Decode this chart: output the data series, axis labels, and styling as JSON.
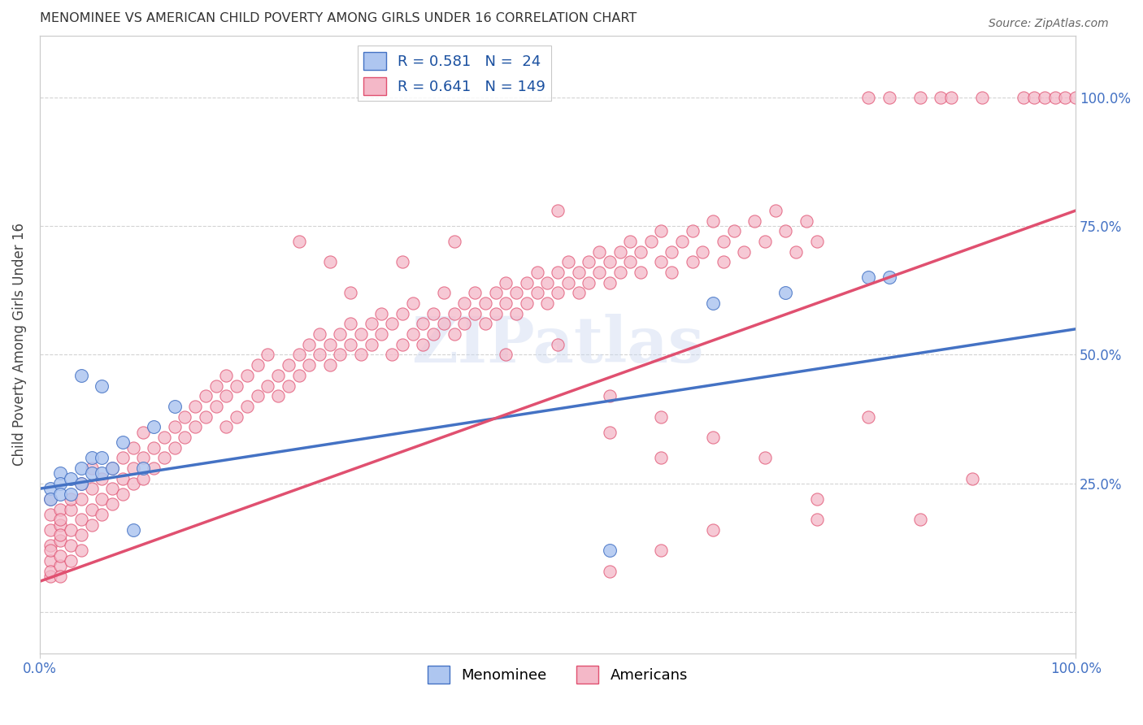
{
  "title": "MENOMINEE VS AMERICAN CHILD POVERTY AMONG GIRLS UNDER 16 CORRELATION CHART",
  "source": "Source: ZipAtlas.com",
  "ylabel": "Child Poverty Among Girls Under 16",
  "watermark": "ZIPatlas",
  "xlim": [
    0.0,
    1.0
  ],
  "ylim": [
    -0.08,
    1.12
  ],
  "menominee_scatter": [
    [
      0.01,
      0.24
    ],
    [
      0.01,
      0.22
    ],
    [
      0.02,
      0.27
    ],
    [
      0.02,
      0.25
    ],
    [
      0.02,
      0.23
    ],
    [
      0.03,
      0.26
    ],
    [
      0.03,
      0.23
    ],
    [
      0.04,
      0.28
    ],
    [
      0.04,
      0.25
    ],
    [
      0.05,
      0.3
    ],
    [
      0.05,
      0.27
    ],
    [
      0.06,
      0.3
    ],
    [
      0.06,
      0.27
    ],
    [
      0.07,
      0.28
    ],
    [
      0.08,
      0.33
    ],
    [
      0.09,
      0.16
    ],
    [
      0.1,
      0.28
    ],
    [
      0.11,
      0.36
    ],
    [
      0.13,
      0.4
    ],
    [
      0.04,
      0.46
    ],
    [
      0.06,
      0.44
    ],
    [
      0.65,
      0.6
    ],
    [
      0.72,
      0.62
    ],
    [
      0.8,
      0.65
    ],
    [
      0.82,
      0.65
    ],
    [
      0.55,
      0.12
    ]
  ],
  "americans_scatter": [
    [
      0.01,
      0.13
    ],
    [
      0.01,
      0.16
    ],
    [
      0.01,
      0.19
    ],
    [
      0.01,
      0.22
    ],
    [
      0.01,
      0.1
    ],
    [
      0.01,
      0.07
    ],
    [
      0.01,
      0.08
    ],
    [
      0.01,
      0.12
    ],
    [
      0.02,
      0.14
    ],
    [
      0.02,
      0.17
    ],
    [
      0.02,
      0.2
    ],
    [
      0.02,
      0.09
    ],
    [
      0.02,
      0.11
    ],
    [
      0.02,
      0.15
    ],
    [
      0.02,
      0.18
    ],
    [
      0.02,
      0.07
    ],
    [
      0.03,
      0.16
    ],
    [
      0.03,
      0.13
    ],
    [
      0.03,
      0.1
    ],
    [
      0.03,
      0.2
    ],
    [
      0.03,
      0.22
    ],
    [
      0.04,
      0.18
    ],
    [
      0.04,
      0.15
    ],
    [
      0.04,
      0.22
    ],
    [
      0.04,
      0.12
    ],
    [
      0.04,
      0.25
    ],
    [
      0.05,
      0.2
    ],
    [
      0.05,
      0.24
    ],
    [
      0.05,
      0.17
    ],
    [
      0.05,
      0.28
    ],
    [
      0.06,
      0.22
    ],
    [
      0.06,
      0.26
    ],
    [
      0.06,
      0.19
    ],
    [
      0.07,
      0.24
    ],
    [
      0.07,
      0.28
    ],
    [
      0.07,
      0.21
    ],
    [
      0.08,
      0.26
    ],
    [
      0.08,
      0.3
    ],
    [
      0.08,
      0.23
    ],
    [
      0.09,
      0.28
    ],
    [
      0.09,
      0.32
    ],
    [
      0.09,
      0.25
    ],
    [
      0.1,
      0.3
    ],
    [
      0.1,
      0.26
    ],
    [
      0.1,
      0.35
    ],
    [
      0.11,
      0.32
    ],
    [
      0.11,
      0.28
    ],
    [
      0.12,
      0.34
    ],
    [
      0.12,
      0.3
    ],
    [
      0.13,
      0.36
    ],
    [
      0.13,
      0.32
    ],
    [
      0.14,
      0.38
    ],
    [
      0.14,
      0.34
    ],
    [
      0.15,
      0.4
    ],
    [
      0.15,
      0.36
    ],
    [
      0.16,
      0.38
    ],
    [
      0.16,
      0.42
    ],
    [
      0.17,
      0.4
    ],
    [
      0.17,
      0.44
    ],
    [
      0.18,
      0.36
    ],
    [
      0.18,
      0.42
    ],
    [
      0.18,
      0.46
    ],
    [
      0.19,
      0.38
    ],
    [
      0.19,
      0.44
    ],
    [
      0.2,
      0.4
    ],
    [
      0.2,
      0.46
    ],
    [
      0.21,
      0.42
    ],
    [
      0.21,
      0.48
    ],
    [
      0.22,
      0.44
    ],
    [
      0.22,
      0.5
    ],
    [
      0.23,
      0.46
    ],
    [
      0.23,
      0.42
    ],
    [
      0.24,
      0.48
    ],
    [
      0.24,
      0.44
    ],
    [
      0.25,
      0.5
    ],
    [
      0.25,
      0.46
    ],
    [
      0.26,
      0.52
    ],
    [
      0.26,
      0.48
    ],
    [
      0.27,
      0.5
    ],
    [
      0.27,
      0.54
    ],
    [
      0.28,
      0.52
    ],
    [
      0.28,
      0.48
    ],
    [
      0.29,
      0.54
    ],
    [
      0.29,
      0.5
    ],
    [
      0.3,
      0.56
    ],
    [
      0.3,
      0.52
    ],
    [
      0.31,
      0.54
    ],
    [
      0.31,
      0.5
    ],
    [
      0.32,
      0.56
    ],
    [
      0.32,
      0.52
    ],
    [
      0.33,
      0.58
    ],
    [
      0.33,
      0.54
    ],
    [
      0.34,
      0.5
    ],
    [
      0.34,
      0.56
    ],
    [
      0.35,
      0.52
    ],
    [
      0.35,
      0.58
    ],
    [
      0.36,
      0.54
    ],
    [
      0.36,
      0.6
    ],
    [
      0.37,
      0.56
    ],
    [
      0.37,
      0.52
    ],
    [
      0.38,
      0.58
    ],
    [
      0.38,
      0.54
    ],
    [
      0.39,
      0.56
    ],
    [
      0.39,
      0.62
    ],
    [
      0.4,
      0.58
    ],
    [
      0.4,
      0.54
    ],
    [
      0.41,
      0.6
    ],
    [
      0.41,
      0.56
    ],
    [
      0.42,
      0.62
    ],
    [
      0.42,
      0.58
    ],
    [
      0.43,
      0.6
    ],
    [
      0.43,
      0.56
    ],
    [
      0.44,
      0.62
    ],
    [
      0.44,
      0.58
    ],
    [
      0.45,
      0.64
    ],
    [
      0.45,
      0.6
    ],
    [
      0.46,
      0.62
    ],
    [
      0.46,
      0.58
    ],
    [
      0.47,
      0.64
    ],
    [
      0.47,
      0.6
    ],
    [
      0.48,
      0.66
    ],
    [
      0.48,
      0.62
    ],
    [
      0.49,
      0.64
    ],
    [
      0.49,
      0.6
    ],
    [
      0.5,
      0.66
    ],
    [
      0.5,
      0.62
    ],
    [
      0.51,
      0.64
    ],
    [
      0.51,
      0.68
    ],
    [
      0.52,
      0.66
    ],
    [
      0.52,
      0.62
    ],
    [
      0.53,
      0.68
    ],
    [
      0.53,
      0.64
    ],
    [
      0.54,
      0.7
    ],
    [
      0.54,
      0.66
    ],
    [
      0.55,
      0.68
    ],
    [
      0.55,
      0.64
    ],
    [
      0.56,
      0.7
    ],
    [
      0.56,
      0.66
    ],
    [
      0.57,
      0.68
    ],
    [
      0.57,
      0.72
    ],
    [
      0.58,
      0.7
    ],
    [
      0.58,
      0.66
    ],
    [
      0.59,
      0.72
    ],
    [
      0.6,
      0.68
    ],
    [
      0.6,
      0.74
    ],
    [
      0.61,
      0.7
    ],
    [
      0.61,
      0.66
    ],
    [
      0.62,
      0.72
    ],
    [
      0.63,
      0.68
    ],
    [
      0.63,
      0.74
    ],
    [
      0.64,
      0.7
    ],
    [
      0.65,
      0.76
    ],
    [
      0.66,
      0.72
    ],
    [
      0.66,
      0.68
    ],
    [
      0.67,
      0.74
    ],
    [
      0.68,
      0.7
    ],
    [
      0.69,
      0.76
    ],
    [
      0.7,
      0.72
    ],
    [
      0.71,
      0.78
    ],
    [
      0.72,
      0.74
    ],
    [
      0.73,
      0.7
    ],
    [
      0.74,
      0.76
    ],
    [
      0.75,
      0.72
    ],
    [
      0.8,
      1.0
    ],
    [
      0.82,
      1.0
    ],
    [
      0.85,
      1.0
    ],
    [
      0.87,
      1.0
    ],
    [
      0.88,
      1.0
    ],
    [
      0.91,
      1.0
    ],
    [
      0.95,
      1.0
    ],
    [
      0.96,
      1.0
    ],
    [
      0.97,
      1.0
    ],
    [
      0.98,
      1.0
    ],
    [
      0.99,
      1.0
    ],
    [
      1.0,
      1.0
    ],
    [
      0.35,
      0.68
    ],
    [
      0.4,
      0.72
    ],
    [
      0.5,
      0.52
    ],
    [
      0.55,
      0.42
    ],
    [
      0.6,
      0.38
    ],
    [
      0.65,
      0.34
    ],
    [
      0.7,
      0.3
    ],
    [
      0.75,
      0.22
    ],
    [
      0.55,
      0.08
    ],
    [
      0.6,
      0.12
    ],
    [
      0.65,
      0.16
    ],
    [
      0.8,
      0.38
    ],
    [
      0.9,
      0.26
    ],
    [
      0.5,
      0.78
    ],
    [
      0.45,
      0.5
    ],
    [
      0.25,
      0.72
    ],
    [
      0.28,
      0.68
    ],
    [
      0.3,
      0.62
    ],
    [
      0.55,
      0.35
    ],
    [
      0.6,
      0.3
    ],
    [
      0.75,
      0.18
    ],
    [
      0.85,
      0.18
    ]
  ],
  "menominee_line_color": "#4472c4",
  "americans_line_color": "#e05070",
  "menominee_scatter_color": "#aec6f0",
  "americans_scatter_color": "#f4b8c8",
  "background_color": "#ffffff",
  "grid_color": "#c8c8c8",
  "title_color": "#333333",
  "axis_label_color": "#444444",
  "tick_label_color": "#4472c4",
  "menominee_reg": [
    0.0,
    0.24,
    1.0,
    0.55
  ],
  "americans_reg": [
    0.0,
    0.06,
    1.0,
    0.78
  ]
}
